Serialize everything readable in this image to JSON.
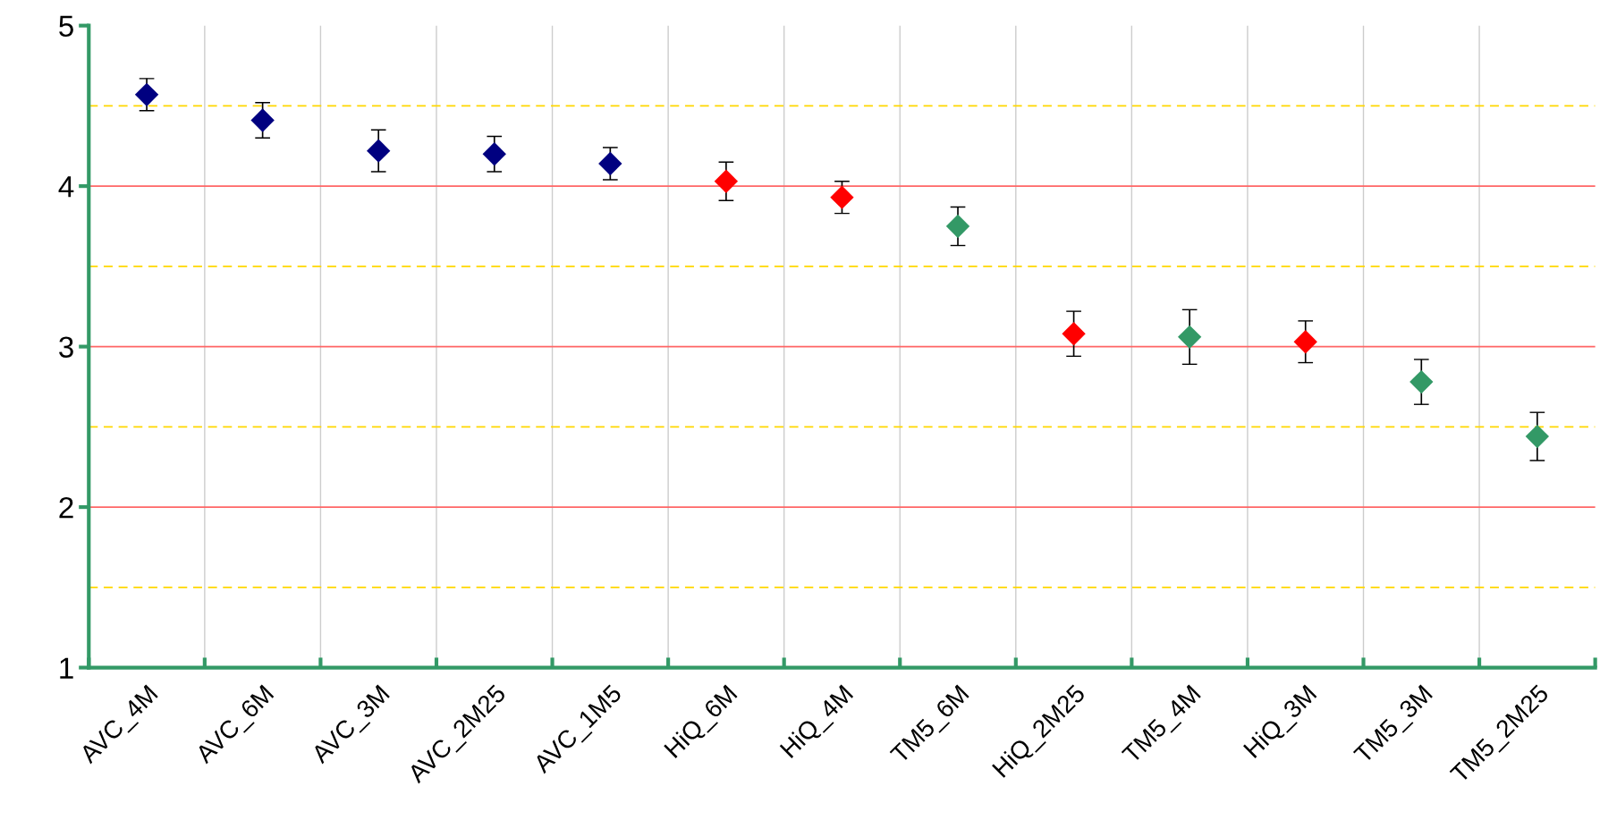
{
  "chart_data": {
    "type": "scatter",
    "categories": [
      "AVC_4M",
      "AVC_6M",
      "AVC_3M",
      "AVC_2M25",
      "AVC_1M5",
      "HiQ_6M",
      "HiQ_4M",
      "TM5_6M",
      "HiQ_2M25",
      "TM5_4M",
      "HiQ_3M",
      "TM5_3M",
      "TM5_2M25"
    ],
    "values": [
      4.57,
      4.41,
      4.22,
      4.2,
      4.14,
      4.03,
      3.93,
      3.75,
      3.08,
      3.06,
      3.03,
      2.78,
      2.44
    ],
    "errors": [
      0.1,
      0.11,
      0.13,
      0.11,
      0.1,
      0.12,
      0.1,
      0.12,
      0.14,
      0.17,
      0.13,
      0.14,
      0.15
    ],
    "colors": [
      "#000080",
      "#000080",
      "#000080",
      "#000080",
      "#000080",
      "#ff0000",
      "#ff0000",
      "#339966",
      "#ff0000",
      "#339966",
      "#ff0000",
      "#339966",
      "#339966"
    ],
    "marker": "diamond",
    "ylim": [
      1,
      5
    ],
    "yticks": [
      1,
      2,
      3,
      4,
      5
    ],
    "grid": "x",
    "ref_lines": [
      {
        "axis": "y",
        "value": 2,
        "color": "#ff6666",
        "line_style": "solid"
      },
      {
        "axis": "y",
        "value": 3,
        "color": "#ff6666",
        "line_style": "solid"
      },
      {
        "axis": "y",
        "value": 4,
        "color": "#ff6666",
        "line_style": "solid"
      },
      {
        "axis": "y",
        "value": 1.5,
        "color": "#ffd700",
        "line_style": "dashed"
      },
      {
        "axis": "y",
        "value": 2.5,
        "color": "#ffd700",
        "line_style": "dashed"
      },
      {
        "axis": "y",
        "value": 3.5,
        "color": "#ffd700",
        "line_style": "dashed"
      },
      {
        "axis": "y",
        "value": 4.5,
        "color": "#ffd700",
        "line_style": "dashed"
      }
    ]
  }
}
